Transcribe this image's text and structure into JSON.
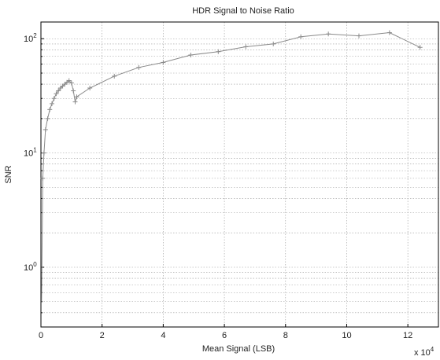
{
  "chart_data": {
    "type": "line",
    "title": "HDR Signal to Noise Ratio",
    "xlabel": "Mean Signal (LSB)",
    "ylabel": "SNR",
    "x_multiplier_base": "x 10",
    "x_multiplier_exp": "4",
    "xlim": [
      0,
      130000
    ],
    "ylim": [
      0.3,
      140
    ],
    "yscale": "log",
    "grid": true,
    "x_ticks": [
      {
        "value": 0,
        "label": "0"
      },
      {
        "value": 20000,
        "label": "2"
      },
      {
        "value": 40000,
        "label": "4"
      },
      {
        "value": 60000,
        "label": "6"
      },
      {
        "value": 80000,
        "label": "8"
      },
      {
        "value": 100000,
        "label": "10"
      },
      {
        "value": 120000,
        "label": "12"
      }
    ],
    "y_ticks": [
      {
        "value": 1,
        "base": "10",
        "exp": "0"
      },
      {
        "value": 10,
        "base": "10",
        "exp": "1"
      },
      {
        "value": 100,
        "base": "10",
        "exp": "2"
      }
    ],
    "series": [
      {
        "color": "#8a8a8a",
        "points": [
          [
            200,
            0.5
          ],
          [
            600,
            6
          ],
          [
            1000,
            10
          ],
          [
            1500,
            16
          ],
          [
            2200,
            20
          ],
          [
            2900,
            24
          ],
          [
            3600,
            27
          ],
          [
            4300,
            30
          ],
          [
            5000,
            33
          ],
          [
            5700,
            35
          ],
          [
            6400,
            37
          ],
          [
            7100,
            38.5
          ],
          [
            7800,
            40
          ],
          [
            8500,
            41.5
          ],
          [
            9200,
            43
          ],
          [
            10000,
            41
          ],
          [
            10600,
            35
          ],
          [
            11200,
            28
          ],
          [
            11700,
            31
          ],
          [
            16000,
            37
          ],
          [
            24000,
            47
          ],
          [
            32000,
            56
          ],
          [
            40000,
            62
          ],
          [
            49000,
            72
          ],
          [
            58000,
            77
          ],
          [
            67000,
            85
          ],
          [
            76000,
            90
          ],
          [
            85000,
            104
          ],
          [
            94000,
            110
          ],
          [
            104000,
            106
          ],
          [
            114000,
            113
          ],
          [
            124000,
            84
          ]
        ]
      }
    ]
  }
}
